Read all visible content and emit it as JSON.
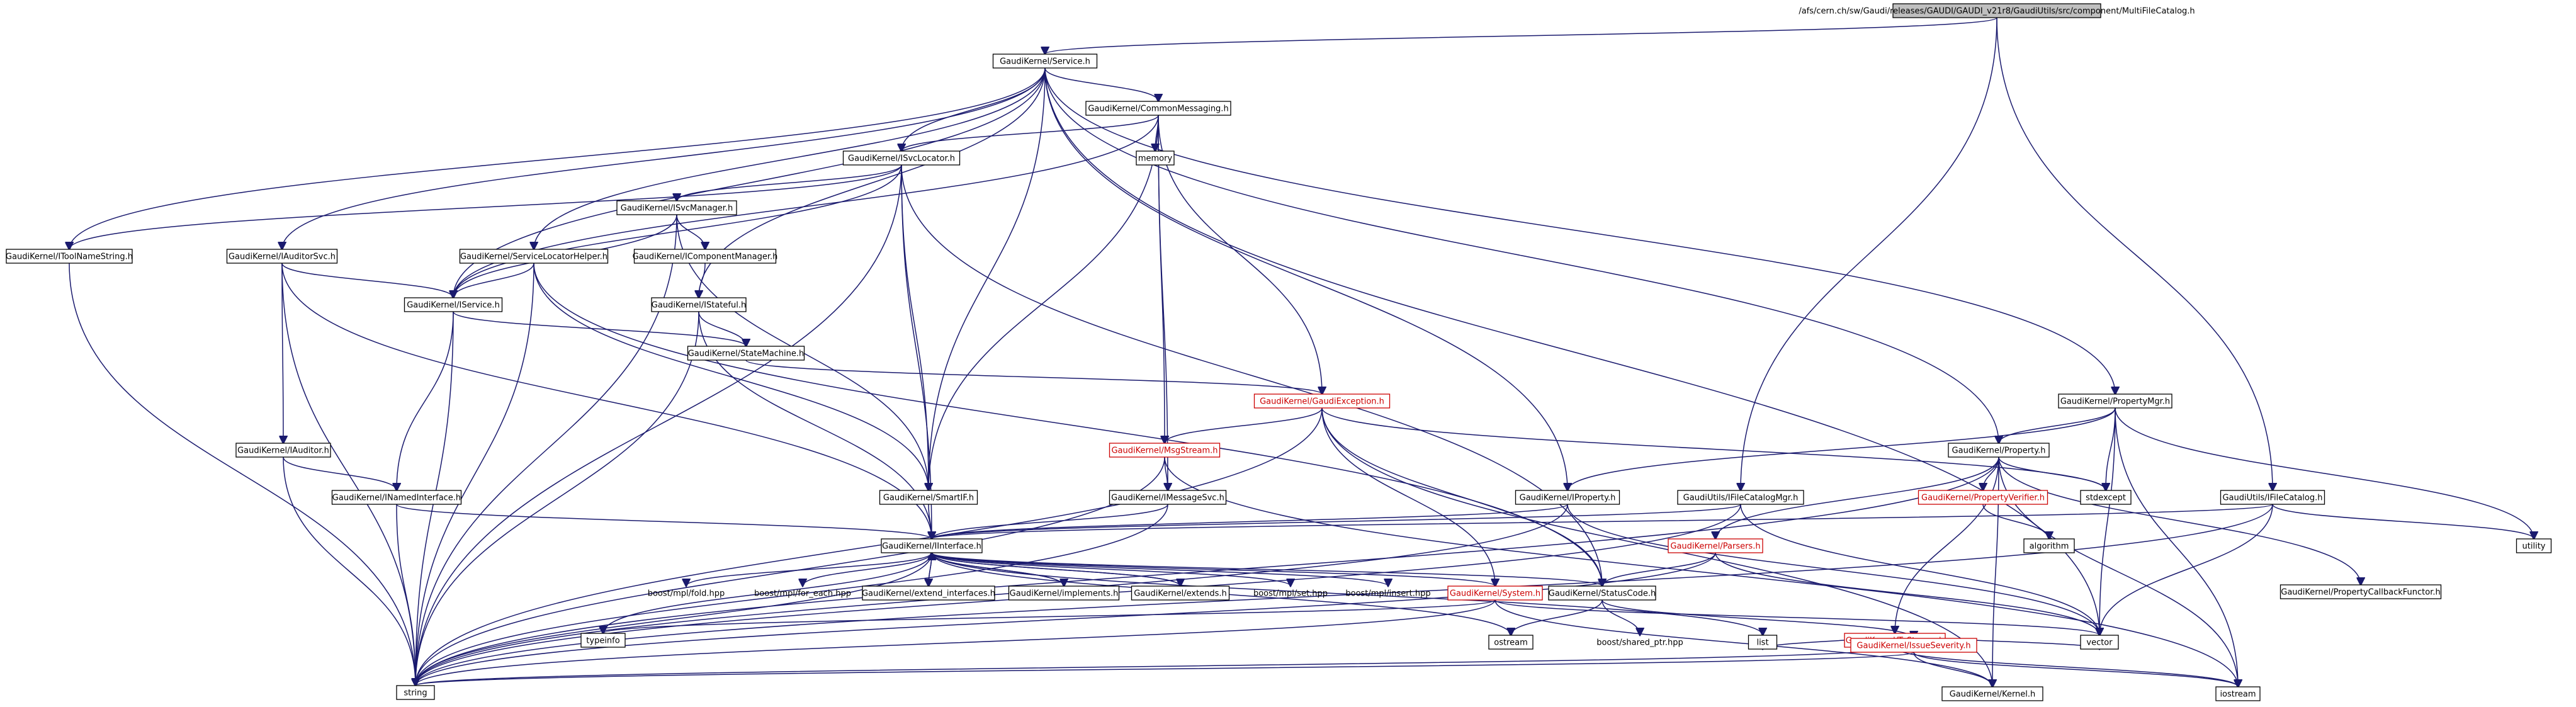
{
  "graph": {
    "title": "/afs/cern.ch/sw/Gaudi/releases/GAUDI/GAUDI_v21r8/GaudiUtils/src/component/MultiFileCatalog.h",
    "nodes": [
      {
        "id": "root",
        "label": "/afs/cern.ch/sw/Gaudi/releases/GAUDI/GAUDI_v21r8/GaudiUtils/src/component/MultiFileCatalog.h",
        "style": "root"
      },
      {
        "id": "service",
        "label": "GaudiKernel/Service.h",
        "style": "box"
      },
      {
        "id": "commonmsg",
        "label": "GaudiKernel/CommonMessaging.h",
        "style": "box"
      },
      {
        "id": "isvclocator",
        "label": "GaudiKernel/ISvcLocator.h",
        "style": "box"
      },
      {
        "id": "memory",
        "label": "memory",
        "style": "box"
      },
      {
        "id": "isvcmanager",
        "label": "GaudiKernel/ISvcManager.h",
        "style": "box"
      },
      {
        "id": "itypename",
        "label": "GaudiKernel/IToolNameString.h",
        "style": "box"
      },
      {
        "id": "iauditorsvc",
        "label": "GaudiKernel/IAuditorSvc.h",
        "style": "box"
      },
      {
        "id": "servicelocatorhelper",
        "label": "GaudiKernel/ServiceLocatorHelper.h",
        "style": "box"
      },
      {
        "id": "icomponentmgr",
        "label": "GaudiKernel/IComponentManager.h",
        "style": "box"
      },
      {
        "id": "iservice",
        "label": "GaudiKernel/IService.h",
        "style": "box"
      },
      {
        "id": "istateful",
        "label": "GaudiKernel/IStateful.h",
        "style": "box"
      },
      {
        "id": "statemachine",
        "label": "GaudiKernel/StateMachine.h",
        "style": "box"
      },
      {
        "id": "gaudiexception",
        "label": "GaudiKernel/GaudiException.h",
        "style": "red"
      },
      {
        "id": "iauditor",
        "label": "GaudiKernel/IAuditor.h",
        "style": "box"
      },
      {
        "id": "inamedinterface",
        "label": "GaudiKernel/INamedInterface.h",
        "style": "box"
      },
      {
        "id": "msgstream",
        "label": "GaudiKernel/MsgStream.h",
        "style": "red"
      },
      {
        "id": "smartif",
        "label": "GaudiKernel/SmartIF.h",
        "style": "box"
      },
      {
        "id": "imessagesvc",
        "label": "GaudiKernel/IMessageSvc.h",
        "style": "box"
      },
      {
        "id": "iproperty",
        "label": "GaudiKernel/IProperty.h",
        "style": "box"
      },
      {
        "id": "ifilecatalogmgr",
        "label": "GaudiUtils/IFileCatalogMgr.h",
        "style": "box"
      },
      {
        "id": "propertymgr",
        "label": "GaudiKernel/PropertyMgr.h",
        "style": "box"
      },
      {
        "id": "property",
        "label": "GaudiKernel/Property.h",
        "style": "box"
      },
      {
        "id": "propertyverifier",
        "label": "GaudiKernel/PropertyVerifier.h",
        "style": "red"
      },
      {
        "id": "stdexcept",
        "label": "stdexcept",
        "style": "box"
      },
      {
        "id": "ifilecatalog",
        "label": "GaudiUtils/IFileCatalog.h",
        "style": "box"
      },
      {
        "id": "utility",
        "label": "utility",
        "style": "box"
      },
      {
        "id": "algorithm",
        "label": "algorithm",
        "style": "box"
      },
      {
        "id": "propertycallback",
        "label": "GaudiKernel/PropertyCallbackFunctor.h",
        "style": "box"
      },
      {
        "id": "iinterface",
        "label": "GaudiKernel/IInterface.h",
        "style": "box"
      },
      {
        "id": "parsers",
        "label": "GaudiKernel/Parsers.h",
        "style": "red"
      },
      {
        "id": "mplfold",
        "label": "boost/mpl/fold.hpp",
        "style": "plain"
      },
      {
        "id": "mplforeach",
        "label": "boost/mpl/for_each.hpp",
        "style": "plain"
      },
      {
        "id": "extendinterfaces",
        "label": "GaudiKernel/extend_interfaces.h",
        "style": "box"
      },
      {
        "id": "implements",
        "label": "GaudiKernel/implements.h",
        "style": "box"
      },
      {
        "id": "extends",
        "label": "GaudiKernel/extends.h",
        "style": "box"
      },
      {
        "id": "mplset",
        "label": "boost/mpl/set.hpp",
        "style": "plain"
      },
      {
        "id": "mplinsert",
        "label": "boost/mpl/insert.hpp",
        "style": "plain"
      },
      {
        "id": "system",
        "label": "GaudiKernel/System.h",
        "style": "red"
      },
      {
        "id": "statuscode",
        "label": "GaudiKernel/StatusCode.h",
        "style": "box"
      },
      {
        "id": "tostream",
        "label": "GaudiKernel/ToStream.h",
        "style": "red"
      },
      {
        "id": "typeinfo",
        "label": "typeinfo",
        "style": "box"
      },
      {
        "id": "ostream",
        "label": "ostream",
        "style": "box"
      },
      {
        "id": "sharedptr",
        "label": "boost/shared_ptr.hpp",
        "style": "plain"
      },
      {
        "id": "list",
        "label": "list",
        "style": "box"
      },
      {
        "id": "issueseverity",
        "label": "GaudiKernel/IssueSeverity.h",
        "style": "red"
      },
      {
        "id": "vector",
        "label": "vector",
        "style": "box"
      },
      {
        "id": "string",
        "label": "string",
        "style": "box"
      },
      {
        "id": "kernel",
        "label": "GaudiKernel/Kernel.h",
        "style": "box"
      },
      {
        "id": "iostream",
        "label": "iostream",
        "style": "box"
      }
    ],
    "edges": [
      [
        "root",
        "service"
      ],
      [
        "root",
        "ifilecatalogmgr"
      ],
      [
        "root",
        "ifilecatalog"
      ],
      [
        "service",
        "commonmsg"
      ],
      [
        "service",
        "isvclocator"
      ],
      [
        "service",
        "itypename"
      ],
      [
        "service",
        "iauditorsvc"
      ],
      [
        "service",
        "servicelocatorhelper"
      ],
      [
        "service",
        "iservice"
      ],
      [
        "service",
        "istateful"
      ],
      [
        "service",
        "smartif"
      ],
      [
        "service",
        "iproperty"
      ],
      [
        "service",
        "propertymgr"
      ],
      [
        "service",
        "property"
      ],
      [
        "service",
        "vector"
      ],
      [
        "commonmsg",
        "memory"
      ],
      [
        "commonmsg",
        "isvclocator"
      ],
      [
        "commonmsg",
        "gaudiexception"
      ],
      [
        "commonmsg",
        "msgstream"
      ],
      [
        "commonmsg",
        "imessagesvc"
      ],
      [
        "commonmsg",
        "smartif"
      ],
      [
        "commonmsg",
        "iservice"
      ],
      [
        "isvclocator",
        "isvcmanager"
      ],
      [
        "isvclocator",
        "iservice"
      ],
      [
        "isvclocator",
        "smartif"
      ],
      [
        "isvclocator",
        "iinterface"
      ],
      [
        "isvclocator",
        "statuscode"
      ],
      [
        "isvclocator",
        "string"
      ],
      [
        "isvclocator",
        "itypename"
      ],
      [
        "isvcmanager",
        "icomponentmgr"
      ],
      [
        "isvcmanager",
        "iservice"
      ],
      [
        "isvcmanager",
        "smartif"
      ],
      [
        "isvcmanager",
        "string"
      ],
      [
        "icomponentmgr",
        "istateful"
      ],
      [
        "itypename",
        "string"
      ],
      [
        "iauditorsvc",
        "iservice"
      ],
      [
        "iauditorsvc",
        "iauditor"
      ],
      [
        "iauditorsvc",
        "string"
      ],
      [
        "iauditorsvc",
        "iinterface"
      ],
      [
        "servicelocatorhelper",
        "iservice"
      ],
      [
        "servicelocatorhelper",
        "smartif"
      ],
      [
        "servicelocatorhelper",
        "string"
      ],
      [
        "servicelocatorhelper",
        "statuscode"
      ],
      [
        "iservice",
        "inamedinterface"
      ],
      [
        "iservice",
        "statemachine"
      ],
      [
        "iservice",
        "string"
      ],
      [
        "istateful",
        "statemachine"
      ],
      [
        "istateful",
        "iinterface"
      ],
      [
        "istateful",
        "string"
      ],
      [
        "statemachine",
        "gaudiexception"
      ],
      [
        "gaudiexception",
        "msgstream"
      ],
      [
        "gaudiexception",
        "system"
      ],
      [
        "gaudiexception",
        "statuscode"
      ],
      [
        "gaudiexception",
        "string"
      ],
      [
        "gaudiexception",
        "stdexcept"
      ],
      [
        "gaudiexception",
        "kernel"
      ],
      [
        "iauditor",
        "inamedinterface"
      ],
      [
        "iauditor",
        "string"
      ],
      [
        "inamedinterface",
        "iinterface"
      ],
      [
        "inamedinterface",
        "string"
      ],
      [
        "msgstream",
        "imessagesvc"
      ],
      [
        "msgstream",
        "iostream"
      ],
      [
        "msgstream",
        "string"
      ],
      [
        "smartif",
        "iinterface"
      ],
      [
        "imessagesvc",
        "iinterface"
      ],
      [
        "imessagesvc",
        "string"
      ],
      [
        "iproperty",
        "iinterface"
      ],
      [
        "iproperty",
        "string"
      ],
      [
        "iproperty",
        "vector"
      ],
      [
        "ifilecatalogmgr",
        "iinterface"
      ],
      [
        "ifilecatalogmgr",
        "string"
      ],
      [
        "ifilecatalogmgr",
        "vector"
      ],
      [
        "propertymgr",
        "property"
      ],
      [
        "propertymgr",
        "stdexcept"
      ],
      [
        "propertymgr",
        "iproperty"
      ],
      [
        "propertymgr",
        "vector"
      ],
      [
        "propertymgr",
        "utility"
      ],
      [
        "propertymgr",
        "iostream"
      ],
      [
        "property",
        "propertyverifier"
      ],
      [
        "property",
        "stdexcept"
      ],
      [
        "property",
        "propertycallback"
      ],
      [
        "property",
        "parsers"
      ],
      [
        "property",
        "tostream"
      ],
      [
        "property",
        "string"
      ],
      [
        "property",
        "iostream"
      ],
      [
        "property",
        "kernel"
      ],
      [
        "propertyverifier",
        "algorithm"
      ],
      [
        "ifilecatalog",
        "iinterface"
      ],
      [
        "ifilecatalog",
        "utility"
      ],
      [
        "ifilecatalog",
        "vector"
      ],
      [
        "ifilecatalog",
        "string"
      ],
      [
        "iinterface",
        "mplfold"
      ],
      [
        "iinterface",
        "mplforeach"
      ],
      [
        "iinterface",
        "extendinterfaces"
      ],
      [
        "iinterface",
        "implements"
      ],
      [
        "iinterface",
        "extends"
      ],
      [
        "iinterface",
        "mplset"
      ],
      [
        "iinterface",
        "mplinsert"
      ],
      [
        "iinterface",
        "system"
      ],
      [
        "iinterface",
        "statuscode"
      ],
      [
        "iinterface",
        "typeinfo"
      ],
      [
        "iinterface",
        "string"
      ],
      [
        "iinterface",
        "ostream"
      ],
      [
        "iinterface",
        "list"
      ],
      [
        "extendinterfaces",
        "iinterface"
      ],
      [
        "implements",
        "iinterface"
      ],
      [
        "extends",
        "iinterface"
      ],
      [
        "parsers",
        "statuscode"
      ],
      [
        "parsers",
        "string"
      ],
      [
        "parsers",
        "vector"
      ],
      [
        "system",
        "kernel"
      ],
      [
        "system",
        "typeinfo"
      ],
      [
        "system",
        "string"
      ],
      [
        "system",
        "vector"
      ],
      [
        "statuscode",
        "ostream"
      ],
      [
        "statuscode",
        "sharedptr"
      ],
      [
        "statuscode",
        "issueseverity"
      ],
      [
        "tostream",
        "list"
      ],
      [
        "tostream",
        "vector"
      ],
      [
        "tostream",
        "string"
      ],
      [
        "tostream",
        "iostream"
      ],
      [
        "issueseverity",
        "kernel"
      ],
      [
        "issueseverity",
        "string"
      ],
      [
        "issueseverity",
        "iostream"
      ]
    ]
  }
}
